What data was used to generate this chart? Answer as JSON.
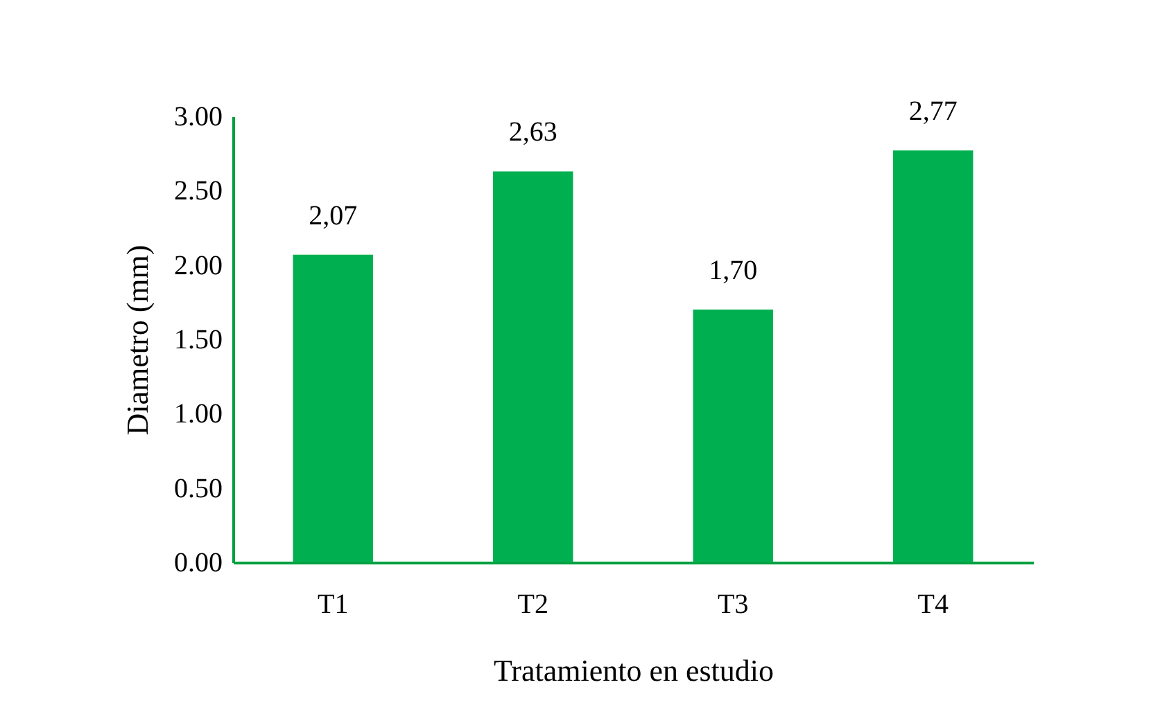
{
  "chart_data": {
    "type": "bar",
    "xlabel": "Tratamiento en estudio",
    "ylabel": "Diametro (mm)",
    "categories": [
      "T1",
      "T2",
      "T3",
      "T4"
    ],
    "values": [
      2.07,
      2.63,
      1.7,
      2.77
    ],
    "value_labels": [
      "2,07",
      "2,63",
      "1,70",
      "2,77"
    ],
    "color": "#00b050",
    "ylim": [
      0,
      3
    ],
    "yticks": [
      {
        "value": 0,
        "label": "0.00"
      },
      {
        "value": 0.5,
        "label": "0.50"
      },
      {
        "value": 1,
        "label": "1.00"
      },
      {
        "value": 1.5,
        "label": "1.50"
      },
      {
        "value": 2,
        "label": "2.00"
      },
      {
        "value": 2.5,
        "label": "2.50"
      },
      {
        "value": 3,
        "label": "3.00"
      }
    ],
    "grid": false
  }
}
